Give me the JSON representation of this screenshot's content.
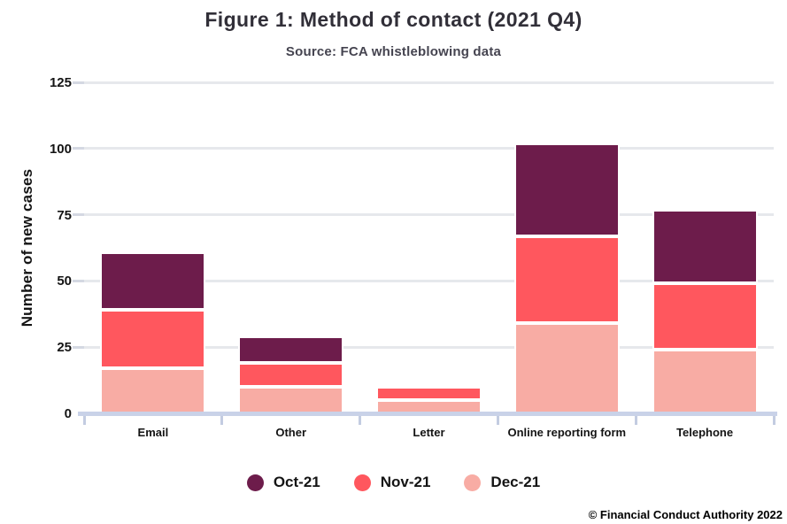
{
  "title": "Figure 1: Method of contact (2021 Q4)",
  "subtitle": "Source: FCA whistleblowing data",
  "footer": "© Financial Conduct Authority 2022",
  "chart_data": {
    "type": "bar",
    "stacked": true,
    "title": "Figure 1: Method of contact (2021 Q4)",
    "subtitle": "Source: FCA whistleblowing data",
    "categories": [
      "Email",
      "Other",
      "Letter",
      "Online reporting form",
      "Telephone"
    ],
    "series": [
      {
        "name": "Oct-21",
        "color": "#6d1c4b",
        "values": [
          22,
          10,
          0,
          35,
          28
        ]
      },
      {
        "name": "Nov-21",
        "color": "#ff575e",
        "values": [
          22,
          9,
          5,
          33,
          25
        ]
      },
      {
        "name": "Dec-21",
        "color": "#f8aca4",
        "values": [
          17,
          10,
          5,
          34,
          24
        ]
      }
    ],
    "stack_order_top_to_bottom": [
      "Oct-21",
      "Nov-21",
      "Dec-21"
    ],
    "totals": [
      61,
      29,
      10,
      102,
      77
    ],
    "xlabel": "",
    "ylabel": "Number of new cases",
    "ylim": [
      0,
      125
    ],
    "yticks": [
      0,
      25,
      50,
      75,
      100,
      125
    ],
    "grid": true,
    "legend_position": "bottom"
  },
  "colors": {
    "gridline": "#e6e8ec",
    "axis_line": "#c9d2e8",
    "tick": "#c3cce1",
    "title_text": "#312f38",
    "subtitle_text": "#454450",
    "label_text": "#141414"
  }
}
